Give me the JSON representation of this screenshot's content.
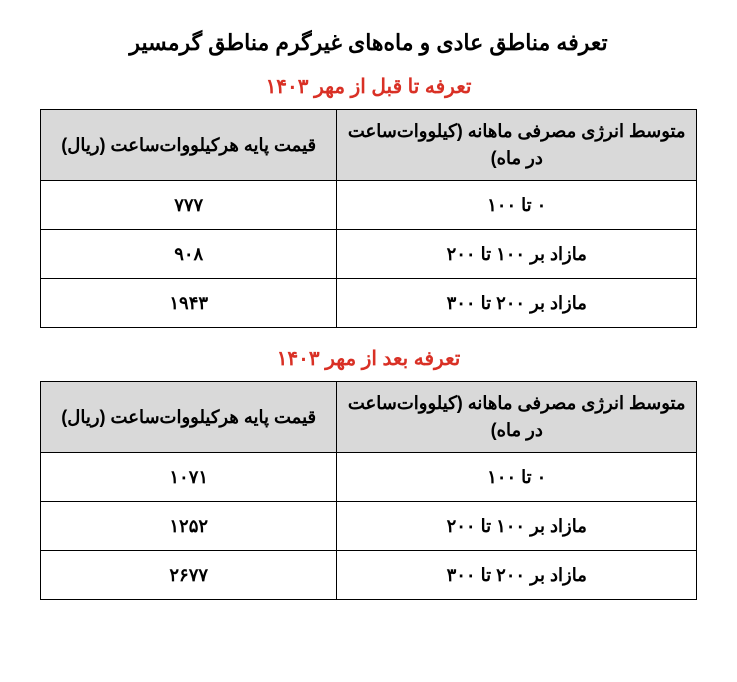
{
  "main_title": "تعرفه مناطق عادی و ماه‌های غیرگرم مناطق گرمسیر",
  "tables": [
    {
      "subtitle": "تعرفه تا قبل از مهر ۱۴۰۳",
      "header_range": "متوسط انرژی مصرفی ماهانه (کیلووات‌ساعت در ماه)",
      "header_price": "قیمت پایه هرکیلووات‌ساعت (ریال)",
      "rows": [
        {
          "range": "۰ تا ۱۰۰",
          "price": "۷۷۷"
        },
        {
          "range": "مازاد بر ۱۰۰ تا ۲۰۰",
          "price": "۹۰۸"
        },
        {
          "range": "مازاد بر ۲۰۰ تا ۳۰۰",
          "price": "۱۹۴۳"
        }
      ]
    },
    {
      "subtitle": "تعرفه بعد از مهر ۱۴۰۳",
      "header_range": "متوسط انرژی مصرفی ماهانه (کیلووات‌ساعت در ماه)",
      "header_price": "قیمت پایه هرکیلووات‌ساعت (ریال)",
      "rows": [
        {
          "range": "۰ تا ۱۰۰",
          "price": "۱۰۷۱"
        },
        {
          "range": "مازاد بر ۱۰۰ تا ۲۰۰",
          "price": "۱۲۵۲"
        },
        {
          "range": "مازاد بر ۲۰۰ تا ۳۰۰",
          "price": "۲۶۷۷"
        }
      ]
    }
  ],
  "colors": {
    "title_red": "#d93025",
    "header_bg": "#d9d9d9",
    "border": "#000000",
    "text": "#000000",
    "background": "#ffffff"
  }
}
